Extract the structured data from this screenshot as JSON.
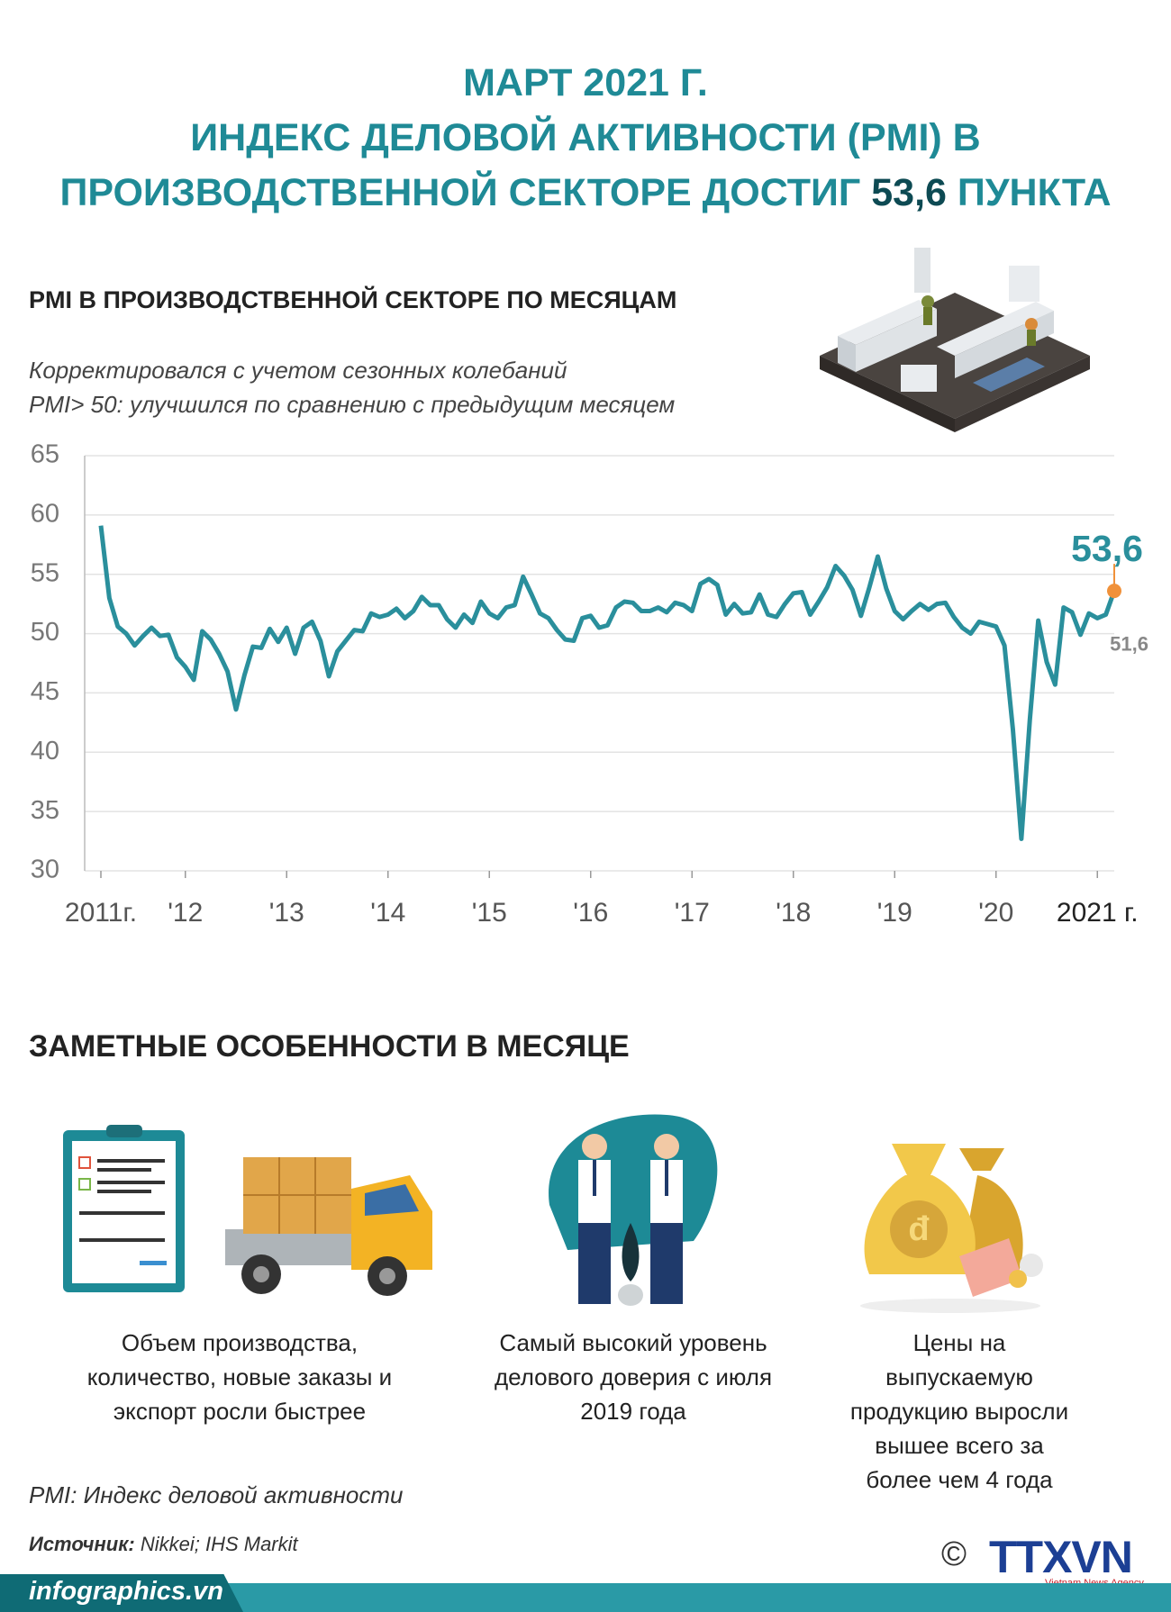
{
  "header": {
    "title_lines": [
      "МАРТ 2021 Г.",
      "ИНДЕКС ДЕЛОВОЙ АКТИВНОСТИ (PMI) В"
    ],
    "title_last": [
      "ПРОИЗВОДСТВЕННОЙ СЕКТОРЕ ДОСТИГ",
      "53,6",
      "ПУНКТА"
    ]
  },
  "chart_data": {
    "type": "line",
    "title": "PMI В ПРОИЗВОДСТВЕННОЙ СЕКТОРЕ ПО МЕСЯЦАМ",
    "subtitle": [
      "Корректировался с учетом сезонных колебаний",
      "PMI> 50: улучшился по сравнению с предыдущим месяцем"
    ],
    "categories": [
      "2011г.",
      null,
      null,
      null,
      null,
      null,
      null,
      null,
      null,
      null,
      "'12",
      null,
      null,
      null,
      null,
      null,
      null,
      null,
      null,
      null,
      null,
      null,
      "'13",
      null,
      null,
      null,
      null,
      null,
      null,
      null,
      null,
      null,
      null,
      null,
      "'14",
      null,
      null,
      null,
      null,
      null,
      null,
      null,
      null,
      null,
      null,
      null,
      "'15",
      null,
      null,
      null,
      null,
      null,
      null,
      null,
      null,
      null,
      null,
      null,
      "'16",
      null,
      null,
      null,
      null,
      null,
      null,
      null,
      null,
      null,
      null,
      null,
      "'17",
      null,
      null,
      null,
      null,
      null,
      null,
      null,
      null,
      null,
      null,
      null,
      "'18",
      null,
      null,
      null,
      null,
      null,
      null,
      null,
      null,
      null,
      null,
      null,
      "'19",
      null,
      null,
      null,
      null,
      null,
      null,
      null,
      null,
      null,
      null,
      null,
      "'20",
      null,
      null,
      null,
      null,
      null,
      null,
      null,
      null,
      null,
      null,
      null,
      "2021 г.",
      null,
      null
    ],
    "values": [
      59.1,
      53.0,
      50.6,
      50.0,
      49.0,
      49.8,
      50.5,
      49.8,
      49.9,
      48.0,
      47.2,
      46.1,
      50.2,
      49.5,
      48.3,
      46.8,
      43.6,
      46.5,
      48.9,
      48.8,
      50.4,
      49.3,
      50.5,
      48.3,
      50.5,
      51.0,
      49.4,
      46.4,
      48.5,
      49.4,
      50.3,
      50.2,
      51.7,
      51.4,
      51.6,
      52.1,
      51.3,
      51.9,
      53.1,
      52.4,
      52.4,
      51.2,
      50.5,
      51.6,
      50.9,
      52.7,
      51.7,
      51.3,
      52.2,
      52.4,
      54.8,
      53.3,
      51.7,
      51.3,
      50.3,
      49.5,
      49.4,
      51.3,
      51.5,
      50.5,
      50.7,
      52.2,
      52.7,
      52.6,
      51.9,
      51.9,
      52.2,
      51.8,
      52.6,
      52.4,
      51.9,
      54.2,
      54.6,
      54.1,
      51.6,
      52.5,
      51.7,
      51.8,
      53.3,
      51.6,
      51.4,
      52.5,
      53.4,
      53.5,
      51.6,
      52.7,
      53.9,
      55.7,
      54.9,
      53.7,
      51.5,
      53.9,
      56.5,
      53.8,
      51.9,
      51.2,
      51.9,
      52.5,
      52.0,
      52.5,
      52.6,
      51.4,
      50.5,
      50.0,
      51.0,
      50.8,
      50.6,
      49.0,
      41.9,
      32.7,
      42.7,
      51.1,
      47.6,
      45.7,
      52.2,
      51.8,
      49.9,
      51.7,
      51.3,
      51.6,
      53.6
    ],
    "value_labels": [
      null,
      null,
      null,
      null,
      null,
      null,
      null,
      null,
      null,
      null,
      null,
      null,
      null,
      null,
      null,
      null,
      null,
      null,
      null,
      null,
      null,
      null,
      null,
      null,
      null,
      null,
      null,
      null,
      null,
      null,
      null,
      null,
      null,
      null,
      null,
      null,
      null,
      null,
      null,
      null,
      null,
      null,
      null,
      null,
      null,
      null,
      null,
      null,
      null,
      null,
      null,
      null,
      null,
      null,
      null,
      null,
      null,
      null,
      null,
      null,
      null,
      null,
      null,
      null,
      null,
      null,
      null,
      null,
      null,
      null,
      null,
      null,
      null,
      null,
      null,
      null,
      null,
      null,
      null,
      null,
      null,
      null,
      null,
      null,
      null,
      null,
      null,
      null,
      null,
      null,
      null,
      null,
      null,
      null,
      null,
      null,
      null,
      null,
      null,
      null,
      null,
      null,
      null,
      null,
      null,
      null,
      null,
      null,
      null,
      null,
      null,
      null,
      null,
      null,
      null,
      null,
      null,
      null,
      null,
      "51,6",
      "53,6"
    ],
    "color": "#2a8f9c",
    "highlight_color": "#f0913a",
    "ylim": [
      30,
      65
    ],
    "yticks": [
      30,
      35,
      40,
      45,
      50,
      55,
      60,
      65
    ],
    "grid": true
  },
  "features": {
    "title": "ЗАМЕТНЫЕ ОСОБЕННОСТИ В МЕСЯЦЕ",
    "items": [
      {
        "lines": [
          "Объем производства,",
          "количество, новые заказы и",
          "экспорт росли быстрее"
        ]
      },
      {
        "lines": [
          "Самый высокий уровень",
          "делового доверия с июля",
          "2019 года"
        ]
      },
      {
        "lines": [
          "Цены на",
          "выпускаемую",
          "продукцию выросли",
          "вышее всего за",
          "более чем 4 года"
        ]
      }
    ]
  },
  "footer": {
    "note": "PMI: Индекс деловой активности",
    "source_label": "Источник:",
    "source": "Nikkei; IHS Markit",
    "site": "infographics.vn",
    "copyright": "©",
    "logo": "TTXVN",
    "logo_sub": "Vietnam News Agency"
  }
}
